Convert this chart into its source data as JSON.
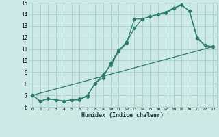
{
  "xlabel": "Humidex (Indice chaleur)",
  "xlim": [
    -0.5,
    23.5
  ],
  "ylim": [
    6,
    15
  ],
  "xticks": [
    0,
    1,
    2,
    3,
    4,
    5,
    6,
    7,
    8,
    9,
    10,
    11,
    12,
    13,
    14,
    15,
    16,
    17,
    18,
    19,
    20,
    21,
    22,
    23
  ],
  "yticks": [
    6,
    7,
    8,
    9,
    10,
    11,
    12,
    13,
    14,
    15
  ],
  "background_color": "#cce9e5",
  "grid_color": "#aad4cf",
  "line_color": "#2a7a6e",
  "line1_x": [
    0,
    1,
    2,
    3,
    4,
    5,
    6,
    7,
    8,
    9,
    10,
    11,
    12,
    13,
    14,
    15,
    16,
    17,
    18,
    19,
    20,
    21,
    22,
    23
  ],
  "line1_y": [
    7.0,
    6.5,
    6.7,
    6.6,
    6.5,
    6.6,
    6.6,
    7.0,
    8.0,
    8.8,
    9.6,
    10.8,
    11.5,
    13.6,
    13.6,
    13.8,
    14.0,
    14.1,
    14.5,
    14.8,
    14.3,
    12.0,
    11.3,
    11.2
  ],
  "line2_x": [
    0,
    1,
    2,
    3,
    4,
    5,
    6,
    7,
    8,
    9,
    10,
    11,
    12,
    13,
    14,
    15,
    16,
    17,
    18,
    19,
    20,
    21,
    22,
    23
  ],
  "line2_y": [
    7.0,
    6.5,
    6.7,
    6.6,
    6.5,
    6.6,
    6.7,
    6.9,
    8.1,
    8.5,
    9.8,
    10.9,
    11.6,
    12.8,
    13.6,
    13.8,
    14.0,
    14.2,
    14.55,
    14.8,
    14.3,
    11.9,
    11.3,
    11.2
  ],
  "line3_x": [
    0,
    23
  ],
  "line3_y": [
    7.0,
    11.2
  ],
  "markersize": 2.2,
  "linewidth": 0.9
}
